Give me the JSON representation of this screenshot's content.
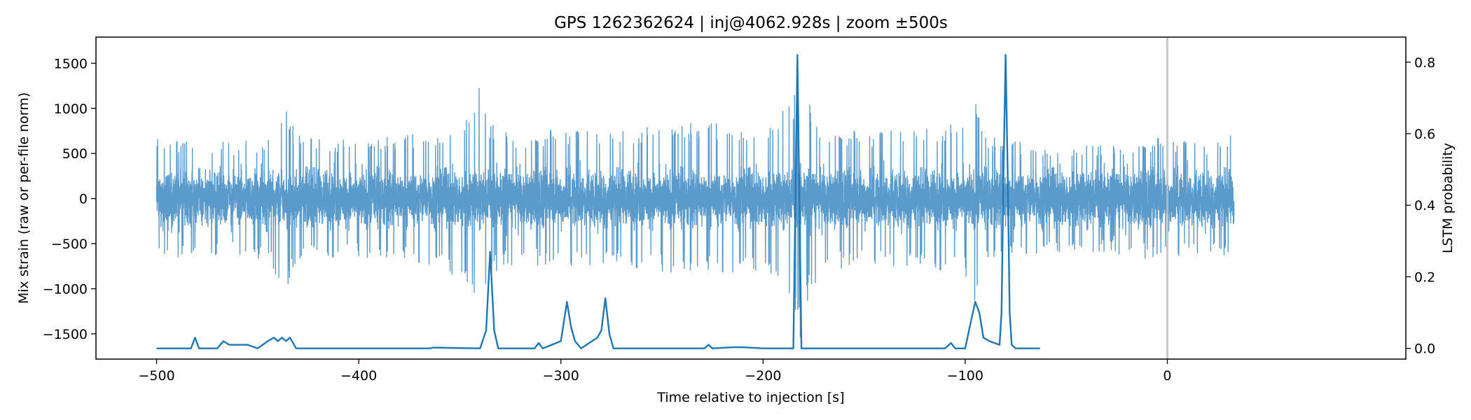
{
  "chart_data": {
    "type": "line",
    "title": "GPS 1262362624 | inj@4062.928s | zoom ±500s",
    "xlabel": "Time relative to injection [s]",
    "ylabel": "Mix strain (raw or per-file norm)",
    "y2label": "LSTM probability",
    "xlim": [
      -530,
      118
    ],
    "ylim": [
      -1780,
      1790
    ],
    "y2lim": [
      -0.03,
      0.87
    ],
    "x_ticks": [
      -500,
      -400,
      -300,
      -200,
      -100,
      0
    ],
    "x_tick_labels": [
      "−500",
      "−400",
      "−300",
      "−200",
      "−100",
      "0"
    ],
    "y_ticks": [
      -1500,
      -1000,
      -500,
      0,
      500,
      1000,
      1500
    ],
    "y_tick_labels": [
      "−1500",
      "−1000",
      "−500",
      "0",
      "500",
      "1000",
      "1500"
    ],
    "y2_ticks": [
      0.0,
      0.2,
      0.4,
      0.6,
      0.8
    ],
    "y2_tick_labels": [
      "0.0",
      "0.2",
      "0.4",
      "0.6",
      "0.8"
    ],
    "injection_line_x": 0,
    "grid": false,
    "colors": {
      "strain": "#5b9bcb",
      "probability": "#1f77b4",
      "injection_line": "#bfbfbf"
    },
    "series": [
      {
        "axis": "left",
        "x_range": [
          -500,
          33
        ],
        "typical_amplitude": 420,
        "envelope": [
          [
            -500,
            700
          ],
          [
            -480,
            620
          ],
          [
            -460,
            640
          ],
          [
            -445,
            680
          ],
          [
            -440,
            900
          ],
          [
            -436,
            1000
          ],
          [
            -430,
            700
          ],
          [
            -400,
            650
          ],
          [
            -380,
            700
          ],
          [
            -360,
            750
          ],
          [
            -345,
            1000
          ],
          [
            -341,
            1300
          ],
          [
            -336,
            850
          ],
          [
            -320,
            700
          ],
          [
            -300,
            800
          ],
          [
            -280,
            750
          ],
          [
            -260,
            800
          ],
          [
            -230,
            850
          ],
          [
            -200,
            800
          ],
          [
            -185,
            1100
          ],
          [
            -182,
            1600
          ],
          [
            -180,
            1400
          ],
          [
            -176,
            1000
          ],
          [
            -170,
            800
          ],
          [
            -150,
            750
          ],
          [
            -120,
            800
          ],
          [
            -100,
            850
          ],
          [
            -95,
            1150
          ],
          [
            -90,
            700
          ],
          [
            -80,
            650
          ],
          [
            -60,
            600
          ],
          [
            -30,
            600
          ],
          [
            0,
            700
          ],
          [
            20,
            600
          ],
          [
            33,
            750
          ]
        ]
      },
      {
        "axis": "right",
        "x": [
          -500,
          -483,
          -481,
          -479,
          -470,
          -467,
          -464,
          -460,
          -455,
          -450,
          -445,
          -442,
          -440,
          -438,
          -436,
          -434,
          -431,
          -380,
          -365,
          -363,
          -340,
          -337,
          -335,
          -333,
          -331,
          -320,
          -313,
          -311,
          -309,
          -300,
          -297,
          -295,
          -293,
          -290,
          -282,
          -280,
          -278,
          -276,
          -274,
          -240,
          -229,
          -227,
          -225,
          -215,
          -210,
          -200,
          -195,
          -185,
          -183,
          -181,
          -179,
          -160,
          -120,
          -110,
          -107,
          -105,
          -100,
          -97,
          -95,
          -93,
          -91,
          -88,
          -83,
          -82,
          -81,
          -80,
          -79,
          -78,
          -77,
          -75,
          -73,
          -65,
          -63
        ],
        "values": [
          0.0,
          0.0,
          0.03,
          0.0,
          0.0,
          0.02,
          0.01,
          0.01,
          0.01,
          0.0,
          0.02,
          0.03,
          0.02,
          0.03,
          0.02,
          0.03,
          0.0,
          0.0,
          0.0,
          0.002,
          0.0,
          0.05,
          0.27,
          0.05,
          0.0,
          0.0,
          0.0,
          0.015,
          0.0,
          0.02,
          0.13,
          0.06,
          0.02,
          0.0,
          0.03,
          0.05,
          0.14,
          0.04,
          0.0,
          0.0,
          0.0,
          0.01,
          0.0,
          0.003,
          0.003,
          0.0,
          0.0,
          0.0,
          0.82,
          0.0,
          0.0,
          0.0,
          0.0,
          0.0,
          0.015,
          0.0,
          0.0,
          0.08,
          0.13,
          0.1,
          0.03,
          0.02,
          0.01,
          0.1,
          0.5,
          0.82,
          0.5,
          0.1,
          0.01,
          0.0,
          0.0,
          0.0,
          0.0
        ]
      }
    ]
  }
}
